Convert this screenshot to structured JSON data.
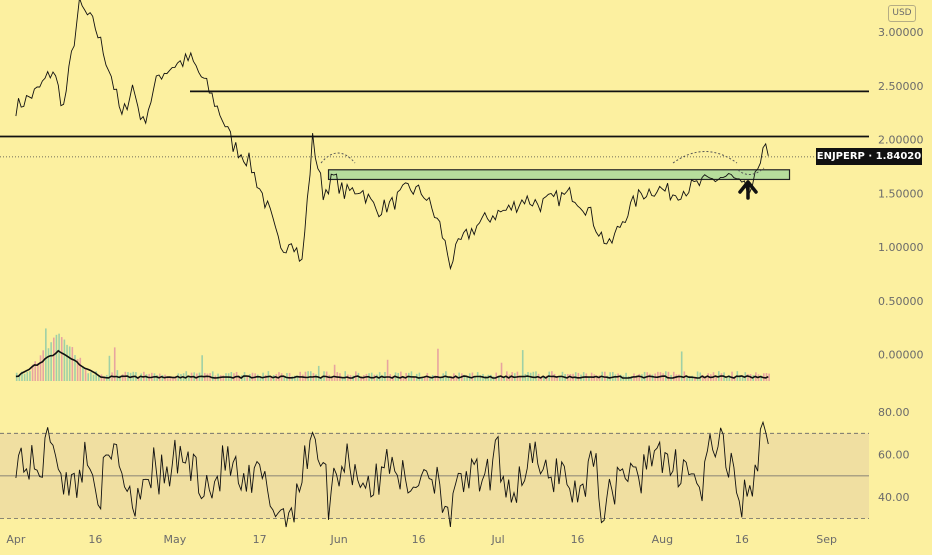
{
  "currency_label": "USD",
  "price_label": {
    "symbol": "ENJPERP",
    "separator": "·",
    "value": "1.84020"
  },
  "chart_data": [
    {
      "type": "line",
      "title": "",
      "series": [
        {
          "name": "ENJPERP",
          "x": [
            "2021-04-01",
            "2021-04-05",
            "2021-04-08",
            "2021-04-10",
            "2021-04-13",
            "2021-04-16",
            "2021-04-19",
            "2021-04-21",
            "2021-04-23",
            "2021-04-25",
            "2021-04-28",
            "2021-05-01",
            "2021-05-04",
            "2021-05-07",
            "2021-05-10",
            "2021-05-12",
            "2021-05-15",
            "2021-05-17",
            "2021-05-19",
            "2021-05-21",
            "2021-05-23",
            "2021-05-25",
            "2021-05-27",
            "2021-05-29",
            "2021-05-31",
            "2021-06-02",
            "2021-06-05",
            "2021-06-08",
            "2021-06-11",
            "2021-06-14",
            "2021-06-17",
            "2021-06-20",
            "2021-06-22",
            "2021-06-24",
            "2021-06-27",
            "2021-06-30",
            "2021-07-03",
            "2021-07-06",
            "2021-07-09",
            "2021-07-12",
            "2021-07-15",
            "2021-07-18",
            "2021-07-20",
            "2021-07-22",
            "2021-07-25",
            "2021-07-28",
            "2021-07-31",
            "2021-08-03",
            "2021-08-06",
            "2021-08-09",
            "2021-08-12",
            "2021-08-14",
            "2021-08-16",
            "2021-08-18",
            "2021-08-19",
            "2021-08-20",
            "2021-08-21"
          ],
          "values": [
            2.3,
            2.45,
            2.65,
            2.3,
            3.25,
            3.05,
            2.6,
            2.2,
            2.5,
            2.15,
            2.6,
            2.7,
            2.75,
            2.5,
            2.2,
            1.95,
            1.8,
            1.55,
            1.3,
            0.95,
            1.1,
            0.85,
            2.0,
            1.5,
            1.65,
            1.5,
            1.55,
            1.35,
            1.4,
            1.55,
            1.5,
            1.2,
            0.85,
            1.05,
            1.2,
            1.3,
            1.35,
            1.45,
            1.4,
            1.45,
            1.5,
            1.35,
            1.15,
            1.0,
            1.3,
            1.5,
            1.55,
            1.5,
            1.55,
            1.6,
            1.65,
            1.65,
            1.55,
            1.5,
            1.75,
            1.95,
            1.85
          ]
        }
      ],
      "ylim": [
        -0.05,
        3.3
      ],
      "y_ticks": [
        "3.00000",
        "2.50000",
        "2.00000",
        "1.50000",
        "1.00000",
        "0.50000",
        "0.00000"
      ],
      "y_tick_values": [
        3.0,
        2.5,
        2.0,
        1.5,
        1.0,
        0.5,
        0.0
      ],
      "x_tick_labels": [
        "Apr",
        "16",
        "May",
        "17",
        "Jun",
        "16",
        "Jul",
        "16",
        "Aug",
        "16",
        "Sep"
      ],
      "x_tick_dates": [
        "2021-04-01",
        "2021-04-16",
        "2021-05-01",
        "2021-05-17",
        "2021-06-01",
        "2021-06-16",
        "2021-07-01",
        "2021-07-16",
        "2021-08-01",
        "2021-08-16",
        "2021-09-01"
      ],
      "xlim": [
        "2021-03-29",
        "2021-09-09"
      ],
      "horizontal_lines": [
        2.45,
        2.03
      ],
      "dotted_line": 1.8402,
      "zone": {
        "from": "2021-05-30",
        "to": "2021-08-25",
        "low": 1.63,
        "high": 1.72
      },
      "grid": false
    },
    {
      "type": "bar",
      "title": "",
      "description": "volume",
      "volume_peak_date": "2021-04-09",
      "volume_peak_relative": 1.0
    },
    {
      "type": "line",
      "title": "",
      "series": [
        {
          "name": "RSI",
          "x": [
            "2021-04-01",
            "2021-04-05",
            "2021-04-08",
            "2021-04-11",
            "2021-04-14",
            "2021-04-17",
            "2021-04-20",
            "2021-04-23",
            "2021-04-26",
            "2021-04-29",
            "2021-05-02",
            "2021-05-05",
            "2021-05-08",
            "2021-05-11",
            "2021-05-14",
            "2021-05-17",
            "2021-05-20",
            "2021-05-22",
            "2021-05-25",
            "2021-05-27",
            "2021-05-30",
            "2021-06-02",
            "2021-06-05",
            "2021-06-08",
            "2021-06-11",
            "2021-06-14",
            "2021-06-17",
            "2021-06-20",
            "2021-06-22",
            "2021-06-25",
            "2021-06-28",
            "2021-07-01",
            "2021-07-04",
            "2021-07-07",
            "2021-07-10",
            "2021-07-13",
            "2021-07-16",
            "2021-07-19",
            "2021-07-21",
            "2021-07-24",
            "2021-07-27",
            "2021-07-30",
            "2021-08-02",
            "2021-08-05",
            "2021-08-08",
            "2021-08-11",
            "2021-08-14",
            "2021-08-16",
            "2021-08-18",
            "2021-08-20",
            "2021-08-21"
          ],
          "values": [
            60,
            52,
            70,
            40,
            58,
            45,
            62,
            38,
            55,
            48,
            60,
            52,
            45,
            58,
            42,
            50,
            35,
            30,
            48,
            75,
            40,
            60,
            50,
            45,
            62,
            40,
            55,
            48,
            30,
            52,
            45,
            58,
            42,
            60,
            48,
            55,
            38,
            62,
            30,
            55,
            45,
            65,
            50,
            58,
            42,
            68,
            50,
            40,
            35,
            85,
            65
          ]
        }
      ],
      "ylim": [
        26,
        88
      ],
      "y_ticks": [
        "80.00",
        "60.00",
        "40.00"
      ],
      "y_tick_values": [
        80,
        60,
        40
      ],
      "bands": [
        70,
        50,
        30
      ]
    }
  ]
}
